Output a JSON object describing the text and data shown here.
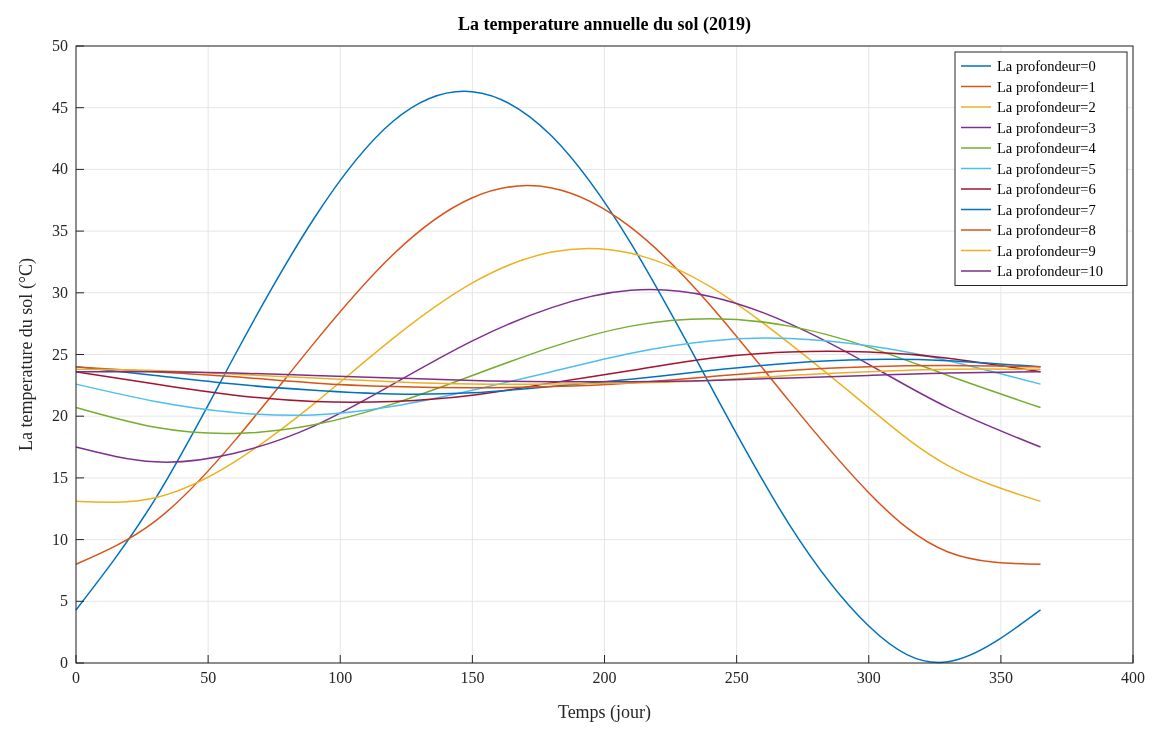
{
  "chart_data": {
    "type": "line",
    "title": "La temperature annuelle du sol (2019)",
    "xlabel": "Temps (jour)",
    "ylabel": "La temperature du sol (°C)",
    "x": [
      0,
      30,
      60,
      90,
      120,
      150,
      180,
      210,
      240,
      270,
      300,
      330,
      365
    ],
    "xlim": [
      0,
      400
    ],
    "xticks": [
      0,
      50,
      100,
      150,
      200,
      250,
      300,
      350,
      400
    ],
    "ylim": [
      0,
      50
    ],
    "yticks": [
      0,
      5,
      10,
      15,
      20,
      25,
      30,
      35,
      40,
      45,
      50
    ],
    "grid": true,
    "legend": "top right",
    "line_style": "solid",
    "series": [
      {
        "name": "La profondeur=0",
        "color": "#0072bd",
        "values": [
          4.3,
          13.3,
          24.9,
          36.0,
          43.9,
          46.3,
          42.7,
          34.0,
          22.5,
          11.2,
          3.0,
          0.1,
          4.3
        ]
      },
      {
        "name": "La profondeur=1",
        "color": "#d95319",
        "values": [
          8.0,
          11.5,
          18.0,
          25.9,
          33.1,
          37.7,
          38.5,
          35.3,
          29.0,
          21.2,
          13.8,
          9.0,
          8.0
        ]
      },
      {
        "name": "La profondeur=2",
        "color": "#edb120",
        "values": [
          13.1,
          13.4,
          16.3,
          21.0,
          26.3,
          30.8,
          33.3,
          33.2,
          30.5,
          25.9,
          20.7,
          16.0,
          13.1
        ]
      },
      {
        "name": "La profondeur=3",
        "color": "#7e2f8e",
        "values": [
          17.5,
          16.3,
          17.0,
          19.2,
          22.6,
          26.1,
          28.8,
          30.2,
          29.7,
          27.5,
          24.2,
          20.7,
          17.5
        ]
      },
      {
        "name": "La profondeur=4",
        "color": "#77ac30",
        "values": [
          20.7,
          19.1,
          18.6,
          19.3,
          21.0,
          23.3,
          25.6,
          27.3,
          27.9,
          27.3,
          25.6,
          23.3,
          20.7
        ]
      },
      {
        "name": "La profondeur=5",
        "color": "#4dbeee",
        "values": [
          22.6,
          21.2,
          20.3,
          20.1,
          20.8,
          22.1,
          23.6,
          25.1,
          26.1,
          26.3,
          25.7,
          24.5,
          22.6
        ]
      },
      {
        "name": "La profondeur=6",
        "color": "#a2142f",
        "values": [
          23.6,
          22.6,
          21.7,
          21.2,
          21.2,
          21.7,
          22.7,
          23.7,
          24.7,
          25.2,
          25.2,
          24.7,
          23.6
        ]
      },
      {
        "name": "La profondeur=7",
        "color": "#0072bd",
        "values": [
          24.0,
          23.3,
          22.6,
          22.1,
          21.8,
          21.9,
          22.4,
          23.0,
          23.7,
          24.3,
          24.6,
          24.5,
          24.0
        ]
      },
      {
        "name": "La profondeur=8",
        "color": "#d95319",
        "values": [
          24.0,
          23.6,
          23.2,
          22.7,
          22.4,
          22.3,
          22.4,
          22.7,
          23.2,
          23.7,
          24.0,
          24.1,
          24.0
        ]
      },
      {
        "name": "La profondeur=9",
        "color": "#edb120",
        "values": [
          23.8,
          23.7,
          23.4,
          23.1,
          22.8,
          22.6,
          22.6,
          22.7,
          22.9,
          23.3,
          23.6,
          23.8,
          23.8
        ]
      },
      {
        "name": "La profondeur=10",
        "color": "#7e2f8e",
        "values": [
          23.6,
          23.6,
          23.5,
          23.3,
          23.1,
          22.9,
          22.8,
          22.8,
          22.9,
          23.1,
          23.3,
          23.5,
          23.6
        ]
      }
    ]
  }
}
